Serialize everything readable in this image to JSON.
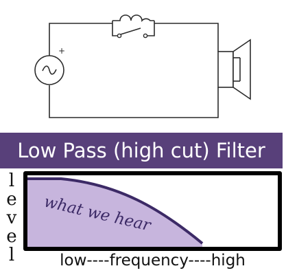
{
  "banner": {
    "title": "Low Pass (high cut) Filter"
  },
  "graph": {
    "ylabel_letters": [
      "l",
      "e",
      "v",
      "e",
      "l"
    ],
    "xlabel": "low----frequency----high",
    "curve_label": "what we hear"
  },
  "circuit": {
    "source_polarity": "+",
    "source_symbol": "~",
    "components": [
      "ac-source",
      "inductor",
      "switch",
      "speaker"
    ]
  },
  "colors": {
    "banner": "#58407a",
    "fill": "#c7b5dd",
    "curve": "#3c2a66",
    "frame": "#000000"
  }
}
